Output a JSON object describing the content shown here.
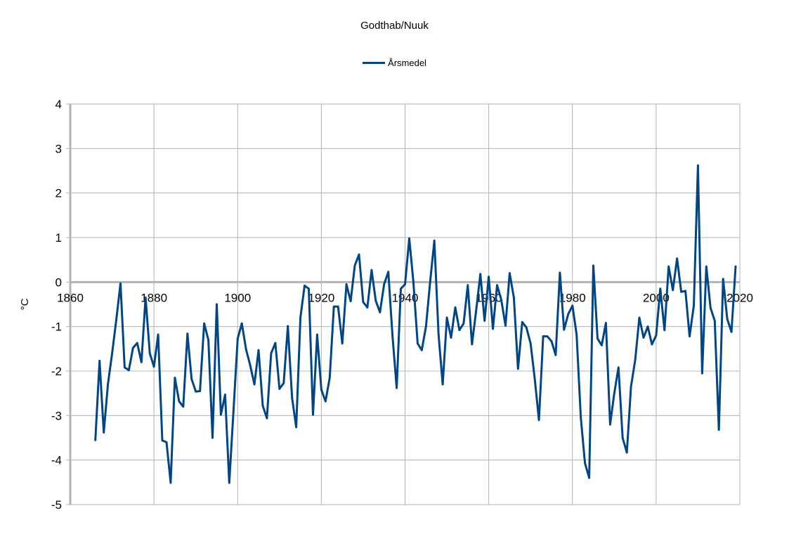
{
  "chart_data": {
    "type": "line",
    "title": "Godthab/Nuuk",
    "xlabel": "",
    "ylabel": "°C",
    "xlim": [
      1860,
      2020
    ],
    "ylim": [
      -5,
      4
    ],
    "xticks": [
      1860,
      1880,
      1900,
      1920,
      1940,
      1960,
      1980,
      2000,
      2020
    ],
    "yticks": [
      4,
      3,
      2,
      1,
      0,
      -1,
      -2,
      -3,
      -4,
      -5
    ],
    "grid": true,
    "legend_position": "top-center",
    "series": [
      {
        "name": "Årsmedel",
        "color": "#004586",
        "x": [
          1866,
          1867,
          1868,
          1869,
          1870,
          1871,
          1872,
          1873,
          1874,
          1875,
          1876,
          1877,
          1878,
          1879,
          1880,
          1881,
          1882,
          1883,
          1884,
          1885,
          1886,
          1887,
          1888,
          1889,
          1890,
          1891,
          1892,
          1893,
          1894,
          1895,
          1896,
          1897,
          1898,
          1899,
          1900,
          1901,
          1902,
          1903,
          1904,
          1905,
          1906,
          1907,
          1908,
          1909,
          1910,
          1911,
          1912,
          1913,
          1914,
          1915,
          1916,
          1917,
          1918,
          1919,
          1920,
          1921,
          1922,
          1923,
          1924,
          1925,
          1926,
          1927,
          1928,
          1929,
          1930,
          1931,
          1932,
          1933,
          1934,
          1935,
          1936,
          1937,
          1938,
          1939,
          1940,
          1941,
          1942,
          1943,
          1944,
          1945,
          1946,
          1947,
          1948,
          1949,
          1950,
          1951,
          1952,
          1953,
          1954,
          1955,
          1956,
          1957,
          1958,
          1959,
          1960,
          1961,
          1962,
          1963,
          1964,
          1965,
          1966,
          1967,
          1968,
          1969,
          1970,
          1971,
          1972,
          1973,
          1974,
          1975,
          1976,
          1977,
          1978,
          1979,
          1980,
          1981,
          1982,
          1983,
          1984,
          1985,
          1986,
          1987,
          1988,
          1989,
          1990,
          1991,
          1992,
          1993,
          1994,
          1995,
          1996,
          1997,
          1998,
          1999,
          2000,
          2001,
          2002,
          2003,
          2004,
          2005,
          2006,
          2007,
          2008,
          2009,
          2010,
          2011,
          2012,
          2013,
          2014,
          2015,
          2016,
          2017,
          2018,
          2019
        ],
        "values": [
          -3.55,
          -1.77,
          -3.38,
          -2.3,
          -1.6,
          -0.85,
          -0.03,
          -1.92,
          -1.98,
          -1.48,
          -1.37,
          -1.8,
          -0.35,
          -1.6,
          -1.9,
          -1.18,
          -3.56,
          -3.6,
          -4.51,
          -2.15,
          -2.68,
          -2.8,
          -1.16,
          -2.18,
          -2.46,
          -2.45,
          -0.93,
          -1.3,
          -3.5,
          -0.5,
          -2.98,
          -2.53,
          -4.51,
          -2.9,
          -1.27,
          -0.93,
          -1.51,
          -1.87,
          -2.3,
          -1.53,
          -2.78,
          -3.06,
          -1.6,
          -1.37,
          -2.4,
          -2.27,
          -0.99,
          -2.6,
          -3.26,
          -0.8,
          -0.08,
          -0.15,
          -2.98,
          -1.18,
          -2.42,
          -2.68,
          -2.15,
          -0.55,
          -0.55,
          -1.38,
          -0.05,
          -0.43,
          0.37,
          0.62,
          -0.45,
          -0.57,
          0.27,
          -0.42,
          -0.68,
          -0.05,
          0.23,
          -1.2,
          -2.38,
          -0.15,
          -0.05,
          0.98,
          0.0,
          -1.38,
          -1.53,
          -1.0,
          0.0,
          0.93,
          -1.18,
          -2.3,
          -0.8,
          -1.25,
          -0.57,
          -1.08,
          -0.93,
          -0.07,
          -1.4,
          -0.63,
          0.18,
          -0.87,
          0.12,
          -1.05,
          -0.07,
          -0.4,
          -0.98,
          0.2,
          -0.35,
          -1.95,
          -0.9,
          -1.02,
          -1.38,
          -2.17,
          -3.1,
          -1.22,
          -1.22,
          -1.33,
          -1.64,
          0.21,
          -1.07,
          -0.72,
          -0.53,
          -1.18,
          -3.05,
          -4.07,
          -4.4,
          0.37,
          -1.27,
          -1.42,
          -0.92,
          -3.2,
          -2.5,
          -1.92,
          -3.5,
          -3.83,
          -2.35,
          -1.75,
          -0.8,
          -1.25,
          -1.0,
          -1.4,
          -1.2,
          -0.15,
          -1.08,
          0.35,
          -0.18,
          0.53,
          -0.22,
          -0.2,
          -1.22,
          -0.53,
          2.62,
          -2.05,
          0.35,
          -0.58,
          -0.87,
          -3.32,
          0.07,
          -0.83,
          -1.12,
          0.35
        ]
      }
    ]
  }
}
